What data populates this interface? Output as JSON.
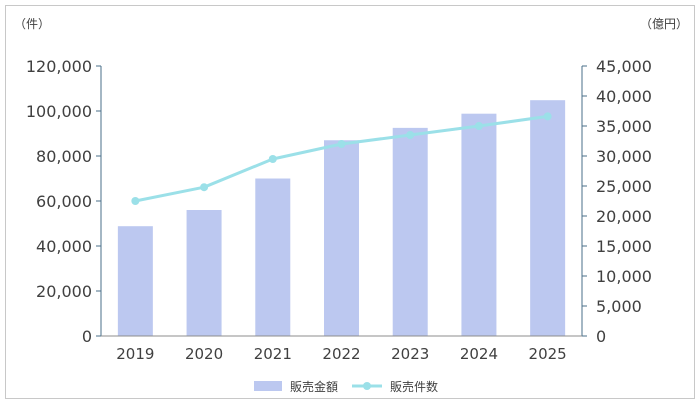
{
  "chart_data": {
    "type": "bar+line",
    "categories": [
      "2019",
      "2020",
      "2021",
      "2022",
      "2023",
      "2024",
      "2025"
    ],
    "left_axis": {
      "unit": "（件）",
      "min": 0,
      "max": 120000,
      "step": 20000,
      "ticks": [
        "0",
        "20,000",
        "40,000",
        "60,000",
        "80,000",
        "100,000",
        "120,000"
      ]
    },
    "right_axis": {
      "unit": "（億円）",
      "min": 0,
      "max": 45000,
      "step": 5000,
      "ticks": [
        "0",
        "5,000",
        "10,000",
        "15,000",
        "20,000",
        "25,000",
        "30,000",
        "35,000",
        "40,000",
        "45,000"
      ]
    },
    "series": [
      {
        "name": "販売金額",
        "kind": "bar",
        "axis": "left",
        "color": "#bcc8f0",
        "values": [
          48800,
          56000,
          70000,
          87000,
          92500,
          98800,
          104800
        ]
      },
      {
        "name": "販売件数",
        "kind": "line",
        "axis": "right",
        "color": "#9be0e8",
        "values": [
          22500,
          24800,
          29500,
          32000,
          33500,
          35000,
          36600
        ]
      }
    ],
    "legend_position": "bottom",
    "grid": false
  }
}
